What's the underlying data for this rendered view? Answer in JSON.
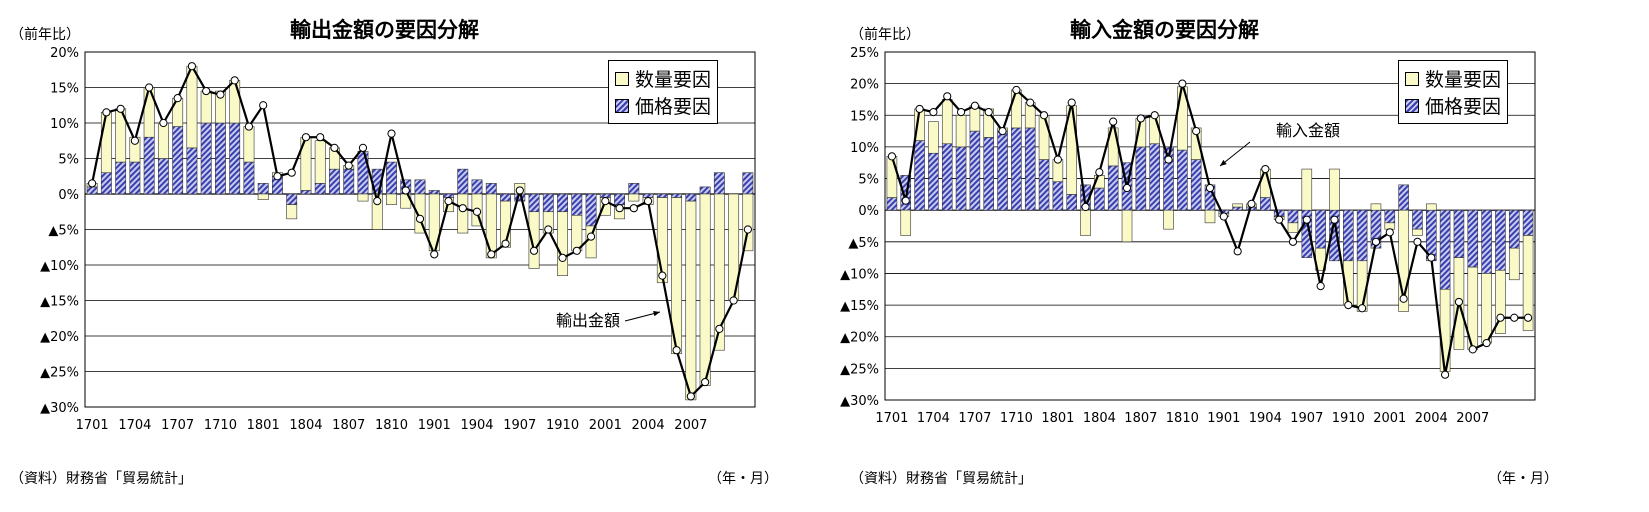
{
  "colors": {
    "quantity": "#fafac8",
    "price": "#3a3fae",
    "price_light": "#c8cbf0",
    "line": "#000000",
    "grid": "#000000"
  },
  "charts": [
    {
      "title": "輸出金額の要因分解",
      "unit_label": "（前年比）",
      "source": "（資料）財務省「貿易統計」",
      "x_unit": "（年・月）",
      "legend": [
        "数量要因",
        "価格要因"
      ],
      "annotation": "輸出金額"
    },
    {
      "title": "輸入金額の要因分解",
      "unit_label": "（前年比）",
      "source": "（資料）財務省「貿易統計」",
      "x_unit": "（年・月）",
      "legend": [
        "数量要因",
        "価格要因"
      ],
      "annotation": "輸入金額"
    }
  ],
  "chart_data": [
    {
      "type": "bar",
      "title": "輸出金額の要因分解",
      "ylabel": "（前年比）",
      "xlabel": "（年・月）",
      "ylim": [
        -30,
        20
      ],
      "yticks": [
        20,
        15,
        10,
        5,
        0,
        -5,
        -10,
        -15,
        -20,
        -25,
        -30
      ],
      "ytick_labels": [
        "20%",
        "15%",
        "10%",
        "5%",
        "0%",
        "▲5%",
        "▲10%",
        "▲15%",
        "▲20%",
        "▲25%",
        "▲30%"
      ],
      "xtick_labels": [
        "1701",
        "1704",
        "1707",
        "1710",
        "1801",
        "1804",
        "1807",
        "1810",
        "1901",
        "1904",
        "1907",
        "1910",
        "2001",
        "2004",
        "2007"
      ],
      "xtick_every": 3,
      "stacked": true,
      "legend_position": "top-right",
      "grid": true,
      "series": [
        {
          "name": "数量要因",
          "kind": "bar",
          "values": [
            0.5,
            8.5,
            7.5,
            3.5,
            7.0,
            5.0,
            4.0,
            11.5,
            4.5,
            4.5,
            6.0,
            5.0,
            -0.8,
            0.5,
            -2.0,
            7.5,
            6.0,
            3.0,
            0.5,
            -1.0,
            -5.0,
            -1.5,
            -2.0,
            -5.5,
            -8.0,
            -2.0,
            -5.5,
            -4.5,
            -9.0,
            -6.5,
            1.5,
            -8.0,
            -3.0,
            -9.0,
            -5.0,
            -4.5,
            -2.5,
            -2.0,
            -1.0,
            -1.0,
            -12.0,
            -22.0,
            -28.0,
            -27.0,
            -22.0,
            -15.0,
            -8.0
          ]
        },
        {
          "name": "価格要因",
          "kind": "bar",
          "values": [
            1.0,
            3.0,
            4.5,
            4.5,
            8.0,
            5.0,
            9.5,
            6.5,
            10.0,
            10.0,
            10.0,
            4.5,
            1.5,
            2.5,
            -1.5,
            0.5,
            1.5,
            3.5,
            3.5,
            6.0,
            3.5,
            4.5,
            2.0,
            2.0,
            0.5,
            -0.5,
            3.5,
            2.0,
            1.5,
            -1.0,
            -1.0,
            -2.5,
            -2.5,
            -2.5,
            -3.0,
            -4.5,
            -0.5,
            -1.5,
            1.5,
            -0.5,
            -0.5,
            -0.5,
            -1.0,
            1.0,
            3.0,
            0.0,
            3.0
          ]
        },
        {
          "name": "輸出金額",
          "kind": "line",
          "values": [
            1.5,
            11.5,
            12.0,
            7.5,
            15.0,
            10.0,
            13.5,
            18.0,
            14.5,
            14.0,
            16.0,
            9.5,
            12.5,
            2.5,
            3.0,
            8.0,
            8.0,
            6.5,
            4.0,
            6.5,
            -1.0,
            8.5,
            0.5,
            -3.5,
            -8.5,
            -1.0,
            -2.0,
            -2.5,
            -8.5,
            -7.0,
            0.5,
            -8.0,
            -5.0,
            -9.0,
            -8.0,
            -6.0,
            -1.0,
            -2.0,
            -2.0,
            -1.0,
            -11.5,
            -22.0,
            -28.5,
            -26.5,
            -19.0,
            -15.0,
            -5.0
          ]
        }
      ]
    },
    {
      "type": "bar",
      "title": "輸入金額の要因分解",
      "ylabel": "（前年比）",
      "xlabel": "（年・月）",
      "ylim": [
        -30,
        25
      ],
      "yticks": [
        25,
        20,
        15,
        10,
        5,
        0,
        -5,
        -10,
        -15,
        -20,
        -25,
        -30
      ],
      "ytick_labels": [
        "25%",
        "20%",
        "15%",
        "10%",
        "5%",
        "0%",
        "▲5%",
        "▲10%",
        "▲15%",
        "▲20%",
        "▲25%",
        "▲30%"
      ],
      "xtick_labels": [
        "1701",
        "1704",
        "1707",
        "1710",
        "1801",
        "1804",
        "1807",
        "1810",
        "1901",
        "1904",
        "1907",
        "1910",
        "2001",
        "2004",
        "2007"
      ],
      "xtick_every": 3,
      "stacked": true,
      "legend_position": "top-right",
      "grid": true,
      "series": [
        {
          "name": "数量要因",
          "kind": "bar",
          "values": [
            6.5,
            -4.0,
            5.0,
            5.0,
            7.0,
            5.0,
            4.0,
            4.5,
            0.5,
            6.0,
            4.0,
            7.0,
            3.5,
            14.0,
            -4.0,
            2.0,
            6.0,
            -5.0,
            4.5,
            4.5,
            -3.0,
            10.0,
            5.0,
            -2.0,
            -0.5,
            0.5,
            0.5,
            4.5,
            -0.5,
            -1.5,
            6.5,
            -3.5,
            6.5,
            -7.0,
            -8.0,
            1.0,
            -1.0,
            -16.0,
            -1.0,
            1.0,
            -13.0,
            -14.5,
            -13.0,
            -11.0,
            -10.0,
            -5.0,
            -15.0
          ]
        },
        {
          "name": "価格要因",
          "kind": "bar",
          "values": [
            2.0,
            5.5,
            11.0,
            9.0,
            10.5,
            10.0,
            12.5,
            11.5,
            12.5,
            13.0,
            13.0,
            8.0,
            4.5,
            2.5,
            4.0,
            3.5,
            7.0,
            7.5,
            10.0,
            10.5,
            10.0,
            9.5,
            8.0,
            4.0,
            -0.5,
            0.5,
            0.5,
            2.0,
            -1.0,
            -2.0,
            -7.5,
            -6.0,
            -8.0,
            -8.0,
            -8.0,
            -6.0,
            -2.0,
            4.0,
            -3.0,
            -8.0,
            -12.5,
            -7.5,
            -9.0,
            -10.0,
            -9.5,
            -6.0,
            -4.0
          ]
        },
        {
          "name": "輸入金額",
          "kind": "line",
          "values": [
            8.5,
            1.5,
            16.0,
            15.5,
            18.0,
            15.5,
            16.5,
            15.5,
            12.5,
            19.0,
            17.0,
            15.0,
            8.0,
            17.0,
            0.5,
            6.0,
            14.0,
            3.5,
            14.5,
            15.0,
            8.0,
            20.0,
            12.5,
            3.5,
            -1.0,
            -6.5,
            1.0,
            6.5,
            -1.5,
            -5.0,
            -1.5,
            -12.0,
            -1.5,
            -15.0,
            -15.5,
            -5.0,
            -3.5,
            -14.0,
            -5.0,
            -7.5,
            -26.0,
            -14.5,
            -22.0,
            -21.0,
            -17.0,
            -17.0,
            -17.0
          ]
        }
      ]
    }
  ]
}
